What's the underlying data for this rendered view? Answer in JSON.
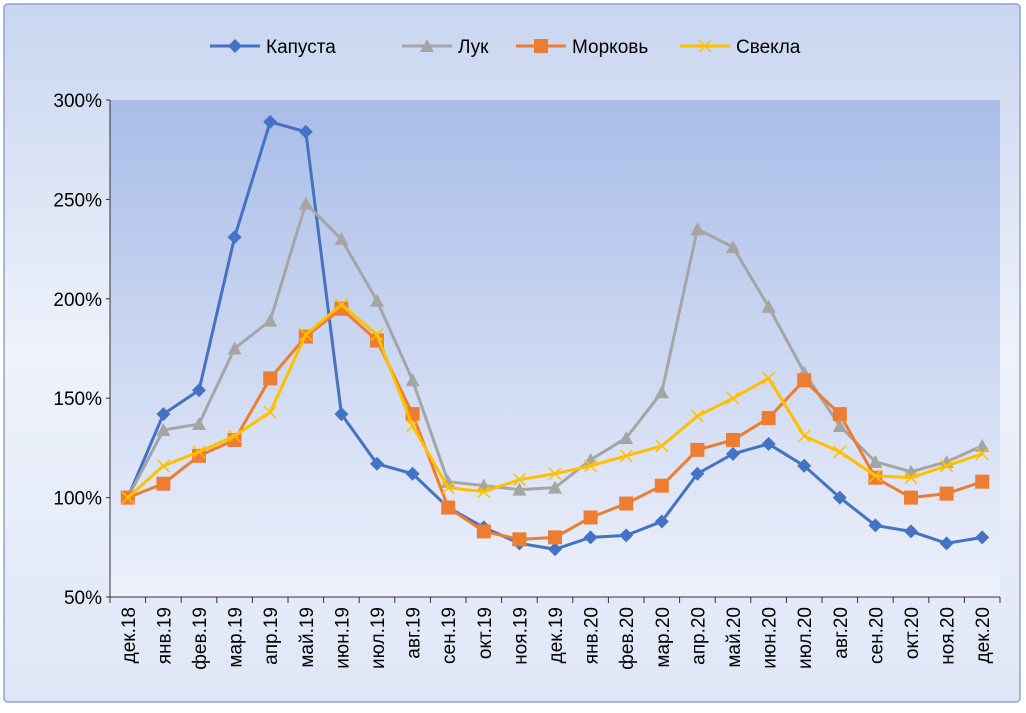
{
  "chart_data": {
    "type": "line",
    "categories": [
      "дек.18",
      "янв.19",
      "фев.19",
      "мар.19",
      "апр.19",
      "май.19",
      "июн.19",
      "июл.19",
      "авг.19",
      "сен.19",
      "окт.19",
      "ноя.19",
      "дек.19",
      "янв.20",
      "фев.20",
      "мар.20",
      "апр.20",
      "май.20",
      "июн.20",
      "июл.20",
      "авг.20",
      "сен.20",
      "окт.20",
      "ноя.20",
      "дек.20"
    ],
    "series": [
      {
        "name": "Капуста",
        "color": "#4472c4",
        "marker": "diamond",
        "values": [
          100,
          142,
          154,
          231,
          289,
          284,
          142,
          117,
          112,
          95,
          85,
          77,
          74,
          80,
          81,
          88,
          112,
          122,
          127,
          116,
          100,
          86,
          83,
          77,
          80
        ]
      },
      {
        "name": "Лук",
        "color": "#a5a5a5",
        "marker": "triangle",
        "values": [
          100,
          134,
          137,
          175,
          189,
          248,
          230,
          199,
          159,
          108,
          106,
          104,
          105,
          119,
          130,
          153,
          235,
          226,
          196,
          163,
          136,
          118,
          113,
          118,
          126
        ]
      },
      {
        "name": "Морковь",
        "color": "#ed7d31",
        "marker": "square",
        "values": [
          100,
          107,
          121,
          129,
          160,
          181,
          195,
          179,
          142,
          95,
          83,
          79,
          80,
          90,
          97,
          106,
          124,
          129,
          140,
          159,
          142,
          110,
          100,
          102,
          108
        ]
      },
      {
        "name": "Свекла",
        "color": "#ffc000",
        "marker": "x",
        "values": [
          100,
          116,
          123,
          131,
          143,
          182,
          197,
          182,
          136,
          105,
          103,
          109,
          112,
          116,
          121,
          126,
          141,
          150,
          160,
          131,
          123,
          111,
          110,
          116,
          122
        ]
      }
    ],
    "ylim": [
      50,
      300
    ],
    "yticks": [
      {
        "value": 50,
        "label": "50%"
      },
      {
        "value": 100,
        "label": "100%"
      },
      {
        "value": 150,
        "label": "150%"
      },
      {
        "value": 200,
        "label": "200%"
      },
      {
        "value": 250,
        "label": "250%"
      },
      {
        "value": 300,
        "label": "300%"
      }
    ],
    "legend": "top"
  }
}
